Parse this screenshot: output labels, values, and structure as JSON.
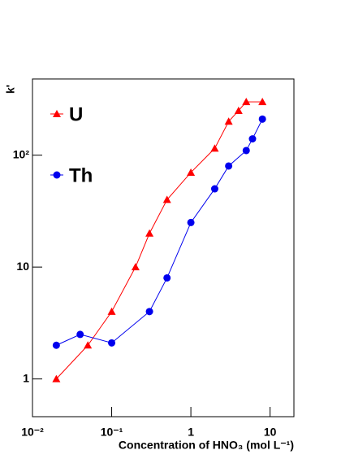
{
  "chart_data": {
    "type": "line",
    "y_label": "k'",
    "x_label": "Concentration of HNO₃ (mol L⁻¹)",
    "log_x": true,
    "log_y": true,
    "grid": false,
    "legend": "top-left",
    "xlim": [
      0.01,
      20
    ],
    "ylim": [
      0.46,
      480
    ],
    "xticks": [
      {
        "value": 0.01,
        "label": "10⁻²"
      },
      {
        "value": 0.1,
        "label": "10⁻¹"
      },
      1,
      10
    ],
    "yticks": [
      1,
      10,
      {
        "value": 100,
        "label": "10²"
      }
    ],
    "series": [
      {
        "name": "U",
        "color": "#ff0000",
        "marker": "triangle",
        "x": [
          0.02,
          0.05,
          0.1,
          0.2,
          0.3,
          0.5,
          1,
          2,
          3,
          4,
          5,
          8
        ],
        "values": [
          1.0,
          2.0,
          4.0,
          10,
          20,
          40,
          70,
          115,
          200,
          250,
          300,
          300
        ]
      },
      {
        "name": "Th",
        "color": "#0000ee",
        "marker": "circle",
        "x": [
          0.02,
          0.04,
          0.1,
          0.3,
          0.5,
          1,
          2,
          3,
          5,
          6,
          8
        ],
        "values": [
          2.0,
          2.5,
          2.1,
          4.0,
          8.0,
          25,
          50,
          80,
          110,
          140,
          210
        ]
      }
    ]
  }
}
